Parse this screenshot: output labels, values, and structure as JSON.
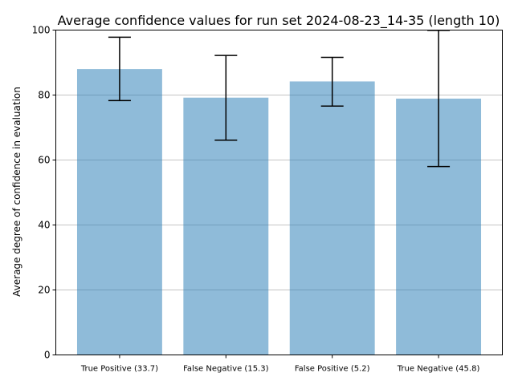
{
  "chart_data": {
    "type": "bar",
    "title": "Average confidence values for run set 2024-08-23_14-35 (length 10)",
    "xlabel": "",
    "ylabel": "Average degree of confidence in evaluation",
    "ylim": [
      0,
      100
    ],
    "yticks": [
      0,
      20,
      40,
      60,
      80,
      100
    ],
    "grid": "y",
    "colors": {
      "bar": "#1f77b4",
      "grid": "#b0b0b0"
    },
    "categories": [
      "True Positive (33.7)",
      "False Negative (15.3)",
      "False Positive (5.2)",
      "True Negative (45.8)"
    ],
    "values": [
      88.0,
      79.2,
      84.2,
      78.9
    ],
    "error_low": [
      78.3,
      66.1,
      76.6,
      58.0
    ],
    "error_high": [
      97.8,
      92.2,
      91.6,
      99.9
    ]
  }
}
